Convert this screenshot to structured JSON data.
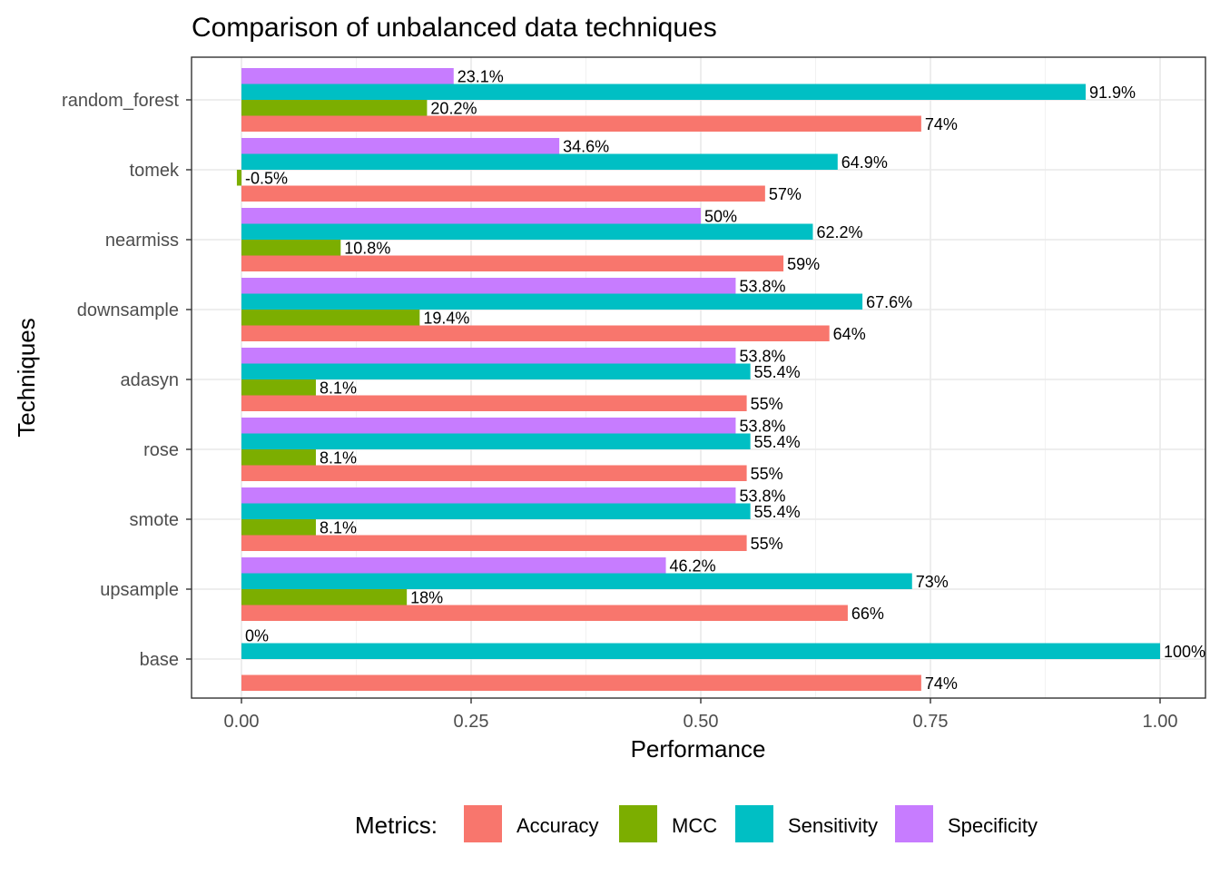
{
  "chart_data": {
    "type": "bar",
    "orientation": "horizontal",
    "title": "Comparison of unbalanced data techniques",
    "xlabel": "Performance",
    "ylabel": "Techniques",
    "xlim": [
      0,
      1
    ],
    "x_ticks": [
      0,
      0.25,
      0.5,
      0.75,
      1.0
    ],
    "x_tick_labels": [
      "0.00",
      "0.25",
      "0.50",
      "0.75",
      "1.00"
    ],
    "grid": true,
    "legend_position": "bottom",
    "legend_title": "Metrics:",
    "categories": [
      "random_forest",
      "tomek",
      "nearmiss",
      "downsample",
      "adasyn",
      "rose",
      "smote",
      "upsample",
      "base"
    ],
    "series": [
      {
        "name": "Accuracy",
        "color": "#F8766D",
        "values": [
          0.74,
          0.57,
          0.59,
          0.64,
          0.55,
          0.55,
          0.55,
          0.66,
          0.74
        ],
        "labels": [
          "74%",
          "57%",
          "59%",
          "64%",
          "55%",
          "55%",
          "55%",
          "66%",
          "74%"
        ]
      },
      {
        "name": "MCC",
        "color": "#7CAE00",
        "values": [
          0.202,
          -0.005,
          0.108,
          0.194,
          0.081,
          0.081,
          0.081,
          0.18,
          0
        ],
        "labels": [
          "20.2%",
          "-0.5%",
          "10.8%",
          "19.4%",
          "8.1%",
          "8.1%",
          "8.1%",
          "18%",
          ""
        ]
      },
      {
        "name": "Sensitivity",
        "color": "#00BFC4",
        "values": [
          0.919,
          0.649,
          0.622,
          0.676,
          0.554,
          0.554,
          0.554,
          0.73,
          1.0
        ],
        "labels": [
          "91.9%",
          "64.9%",
          "62.2%",
          "67.6%",
          "55.4%",
          "55.4%",
          "55.4%",
          "73%",
          "100%"
        ]
      },
      {
        "name": "Specificity",
        "color": "#C77CFF",
        "values": [
          0.231,
          0.346,
          0.5,
          0.538,
          0.538,
          0.538,
          0.538,
          0.462,
          0
        ],
        "labels": [
          "23.1%",
          "34.6%",
          "50%",
          "53.8%",
          "53.8%",
          "53.8%",
          "53.8%",
          "46.2%",
          "0%"
        ]
      }
    ]
  }
}
